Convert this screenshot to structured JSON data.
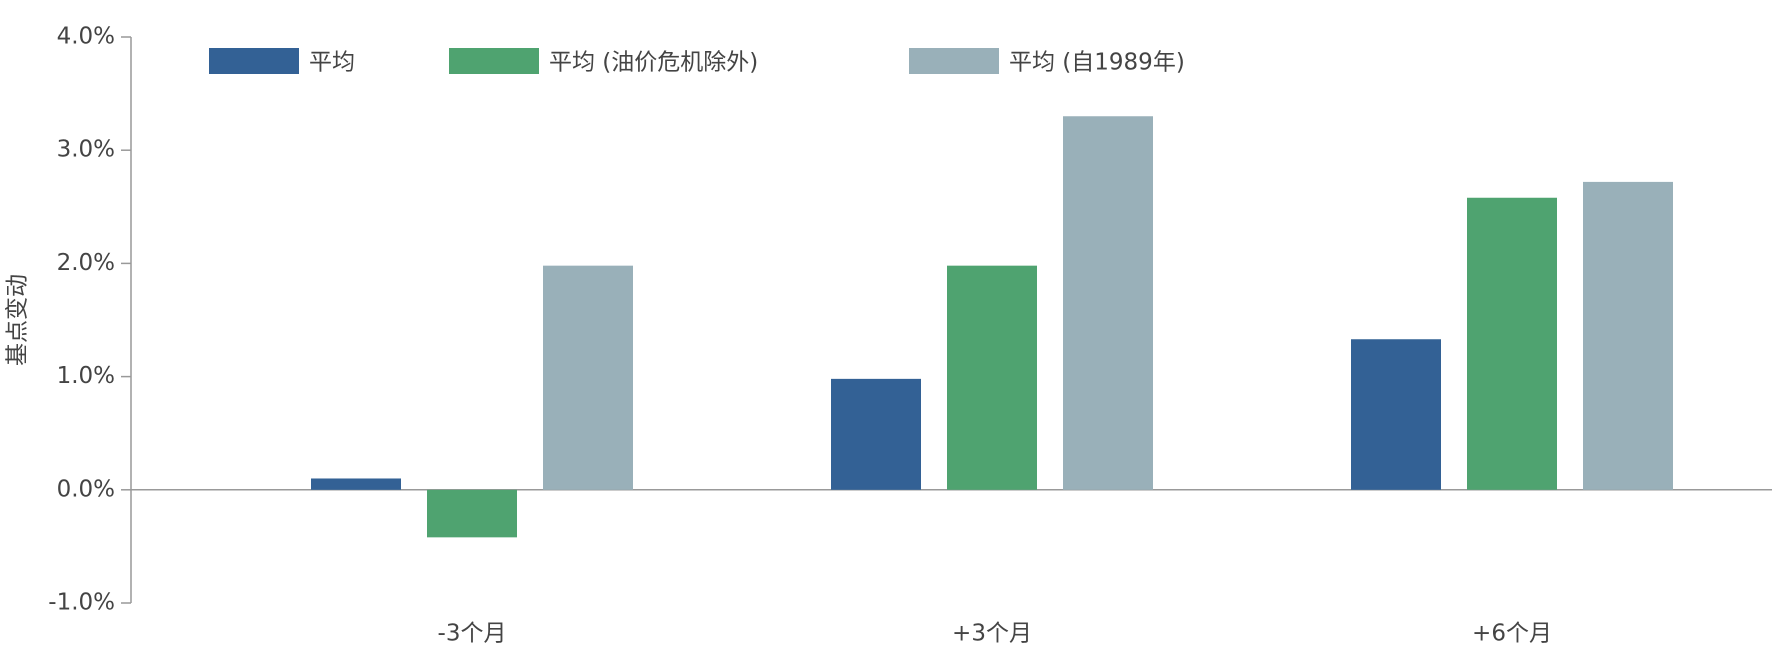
{
  "chart_data": {
    "type": "bar",
    "y_label": "基点变动",
    "categories": [
      "-3个月",
      "+3个月",
      "+6个月"
    ],
    "series": [
      {
        "name": "平均",
        "color": "#336195",
        "values": [
          0.1,
          0.98,
          1.33
        ]
      },
      {
        "name": "平均 (油价危机除外)",
        "color": "#4fa370",
        "values": [
          -0.42,
          1.98,
          2.58
        ]
      },
      {
        "name": "平均 (自1989年)",
        "color": "#99b0b9",
        "values": [
          1.98,
          3.3,
          2.72
        ]
      }
    ],
    "ylim": [
      -1,
      4
    ],
    "yticks": [
      {
        "value": -1,
        "label": "-1.0%"
      },
      {
        "value": 0,
        "label": "0.0%"
      },
      {
        "value": 1,
        "label": "1.0%"
      },
      {
        "value": 2,
        "label": "2.0%"
      },
      {
        "value": 3,
        "label": "3.0%"
      },
      {
        "value": 4,
        "label": "4.0%"
      }
    ],
    "legend": "top-left"
  }
}
